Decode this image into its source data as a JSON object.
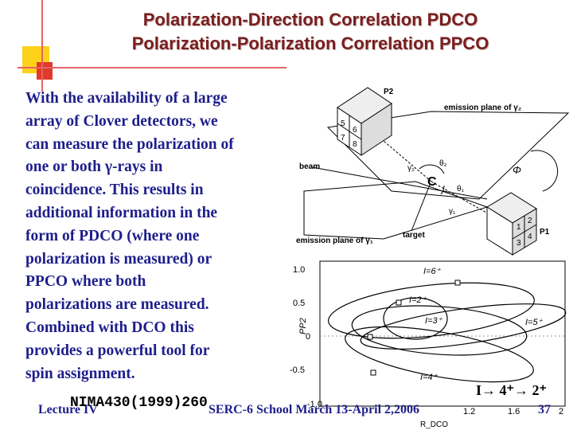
{
  "title": {
    "line1": "Polarization-Direction Correlation PDCO",
    "line2": "Polarization-Polarization Correlation PPCO"
  },
  "body_text": "With the availability of a large\narray of Clover detectors, we\ncan measure the polarization of\none or both γ-rays in\ncoincidence. This results in\nadditional information in the\nform of PDCO (where one\npolarization is measured) or\nPPCO where both\npolarizations are measured.\nCombined with DCO this\nprovides a powerful tool for\nspin assignment.",
  "diagram": {
    "p2": "P2",
    "p1": "P1",
    "beam": "beam",
    "target": "target",
    "emission_plane_2": "emission plane of γ₂",
    "emission_plane_1": "emission plane of γ₁",
    "gamma2": "γ₂",
    "gamma1": "γ₁",
    "theta2": "θ₂",
    "theta1": "θ₁",
    "phi": "Φ",
    "crystals_top": [
      "5",
      "6",
      "7",
      "8"
    ],
    "crystals_bottom": [
      "1",
      "2",
      "3",
      "4"
    ]
  },
  "plot": {
    "ylabel": "PP2",
    "xlabel": "R_DCO",
    "y_ticks": [
      "1.0",
      "0.5",
      "0",
      "-0.5",
      "-1.0"
    ],
    "x_ticks": [
      "1.2",
      "1.6",
      "2"
    ],
    "curve_labels": [
      "I=6⁺",
      "I=2⁺",
      "I=3⁺",
      "I=5⁺",
      "I=4⁺"
    ]
  },
  "transition": "I→ 4⁺→ 2⁺",
  "footer": {
    "lecture": "Lecture IV",
    "nima": "NIMA430(1999)260",
    "school": "SERC-6 School March 13-April 2,2006",
    "page": "37"
  },
  "colors": {
    "title": "#7a1e1e",
    "body_text": "#1e1e8c",
    "accent_yellow": "#ffd21a",
    "accent_red": "#e23a2a"
  }
}
